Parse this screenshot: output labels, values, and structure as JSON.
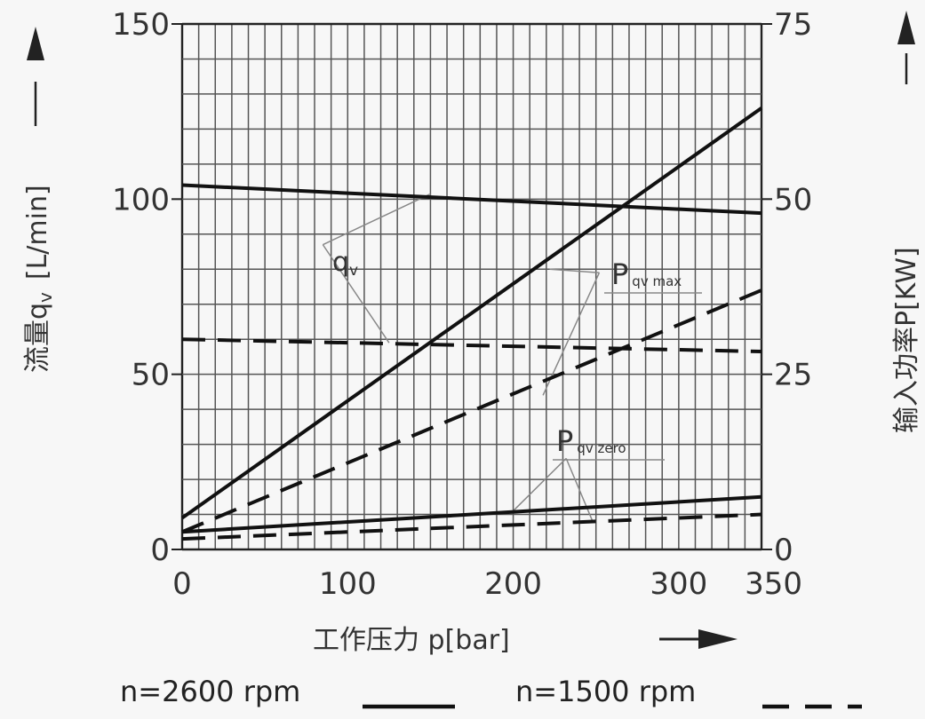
{
  "chart_data": {
    "type": "line",
    "xlabel": "工作压力 p[bar]",
    "ylabel_left": "流量q",
    "ylabel_left_sub": "v",
    "ylabel_left_unit": "[L/min]",
    "ylabel_right": "输入功率P[KW]",
    "xlim": [
      0,
      350
    ],
    "ylim_left": [
      0,
      150
    ],
    "ylim_right": [
      0,
      75
    ],
    "x_ticks": [
      0,
      100,
      200,
      300,
      350
    ],
    "y_left_ticks": [
      0,
      50,
      100,
      150
    ],
    "y_right_ticks": [
      0,
      25,
      50,
      75
    ],
    "grid": true,
    "annotations": {
      "qv": {
        "main": "q",
        "sub": "v"
      },
      "pmax": {
        "main": "P",
        "sub": "qv max"
      },
      "pzero": {
        "main": "P",
        "sub": "qv zero"
      }
    },
    "legend": [
      {
        "label": "n=2600 rpm",
        "style": "solid"
      },
      {
        "label": "n=1500 rpm",
        "style": "dashed"
      }
    ],
    "series": [
      {
        "legend": "n=2600 rpm",
        "axis": "left",
        "kind": "flow",
        "style": "solid",
        "x": [
          0,
          350
        ],
        "y": [
          104,
          96
        ]
      },
      {
        "legend": "n=1500 rpm",
        "axis": "left",
        "kind": "flow",
        "style": "dashed",
        "x": [
          0,
          350
        ],
        "y": [
          60,
          56.5
        ]
      },
      {
        "legend": "n=2600 rpm",
        "axis": "right",
        "kind": "power qv max",
        "style": "solid",
        "x": [
          0,
          350
        ],
        "y": [
          4.5,
          63
        ]
      },
      {
        "legend": "n=1500 rpm",
        "axis": "right",
        "kind": "power qv max",
        "style": "dashed",
        "x": [
          0,
          350
        ],
        "y": [
          2.5,
          37
        ]
      },
      {
        "legend": "n=2600 rpm",
        "axis": "right",
        "kind": "power qv zero",
        "style": "solid",
        "x": [
          0,
          350
        ],
        "y": [
          2.5,
          7.5
        ]
      },
      {
        "legend": "n=1500 rpm",
        "axis": "right",
        "kind": "power qv zero",
        "style": "dashed",
        "x": [
          0,
          350
        ],
        "y": [
          1.5,
          5
        ]
      }
    ]
  }
}
